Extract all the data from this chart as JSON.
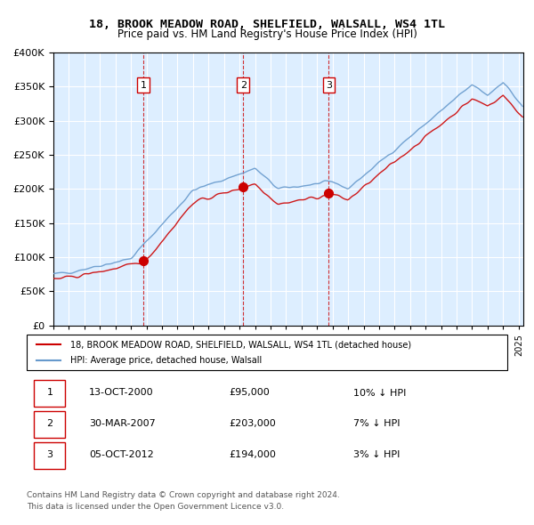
{
  "title": "18, BROOK MEADOW ROAD, SHELFIELD, WALSALL, WS4 1TL",
  "subtitle": "Price paid vs. HM Land Registry's House Price Index (HPI)",
  "legend_line1": "18, BROOK MEADOW ROAD, SHELFIELD, WALSALL, WS4 1TL (detached house)",
  "legend_line2": "HPI: Average price, detached house, Walsall",
  "transactions": [
    {
      "num": 1,
      "date": "13-OCT-2000",
      "price": 95000,
      "note": "10% ↓ HPI",
      "year": 2000.79
    },
    {
      "num": 2,
      "date": "30-MAR-2007",
      "price": 203000,
      "note": "7% ↓ HPI",
      "year": 2007.24
    },
    {
      "num": 3,
      "date": "05-OCT-2012",
      "price": 194000,
      "note": "3% ↓ HPI",
      "year": 2012.76
    }
  ],
  "footnote1": "Contains HM Land Registry data © Crown copyright and database right 2024.",
  "footnote2": "This data is licensed under the Open Government Licence v3.0.",
  "red_color": "#cc0000",
  "blue_color": "#6699cc",
  "bg_color": "#ddeeff",
  "ylim": [
    0,
    400000
  ],
  "xlim_start": 1995.0,
  "xlim_end": 2025.3
}
